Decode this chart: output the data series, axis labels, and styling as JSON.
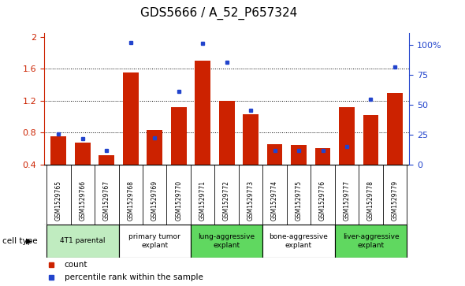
{
  "title": "GDS5666 / A_52_P657324",
  "samples": [
    "GSM1529765",
    "GSM1529766",
    "GSM1529767",
    "GSM1529768",
    "GSM1529769",
    "GSM1529770",
    "GSM1529771",
    "GSM1529772",
    "GSM1529773",
    "GSM1529774",
    "GSM1529775",
    "GSM1529776",
    "GSM1529777",
    "GSM1529778",
    "GSM1529779"
  ],
  "red_values": [
    0.75,
    0.67,
    0.52,
    1.55,
    0.83,
    1.12,
    1.7,
    1.2,
    1.03,
    0.65,
    0.64,
    0.6,
    1.12,
    1.02,
    1.3
  ],
  "blue_values": [
    0.78,
    0.72,
    0.58,
    1.93,
    0.73,
    1.32,
    1.92,
    1.68,
    1.08,
    0.58,
    0.58,
    0.58,
    0.62,
    1.22,
    1.62
  ],
  "ylim_left": [
    0.4,
    2.05
  ],
  "ylim_right": [
    0,
    110
  ],
  "yticks_left": [
    0.4,
    0.8,
    1.2,
    1.6,
    2.0
  ],
  "ytick_labels_left": [
    "0.4",
    "0.8",
    "1.2",
    "1.6",
    "2"
  ],
  "yticks_right": [
    0,
    25,
    50,
    75,
    100
  ],
  "ytick_labels_right": [
    "0",
    "25",
    "50",
    "75",
    "100%"
  ],
  "groups": [
    {
      "label": "4T1 parental",
      "start": 0,
      "end": 3,
      "color": "#c0ecc0"
    },
    {
      "label": "primary tumor\nexplant",
      "start": 3,
      "end": 6,
      "color": "#ffffff"
    },
    {
      "label": "lung-aggressive\nexplant",
      "start": 6,
      "end": 9,
      "color": "#60d860"
    },
    {
      "label": "bone-aggressive\nexplant",
      "start": 9,
      "end": 12,
      "color": "#ffffff"
    },
    {
      "label": "liver-aggressive\nexplant",
      "start": 12,
      "end": 15,
      "color": "#60d860"
    }
  ],
  "red_color": "#cc2200",
  "blue_color": "#2244cc",
  "bar_width": 0.65,
  "baseline": 0.4,
  "sample_box_color": "#c8c8c8",
  "cell_type_label": "cell type",
  "legend_count": "count",
  "legend_percentile": "percentile rank within the sample"
}
